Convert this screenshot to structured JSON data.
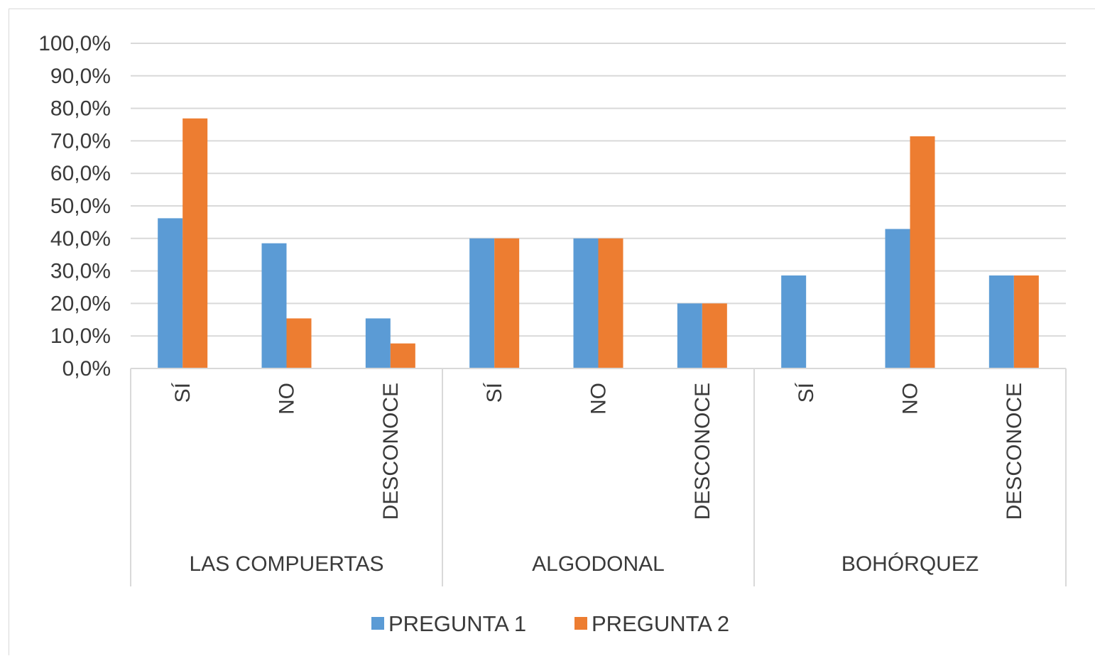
{
  "chart_data": {
    "type": "bar",
    "y_ticks": [
      "0,0%",
      "10,0%",
      "20,0%",
      "30,0%",
      "40,0%",
      "50,0%",
      "60,0%",
      "70,0%",
      "80,0%",
      "90,0%",
      "100,0%"
    ],
    "ylim": [
      0,
      100
    ],
    "grid": true,
    "legend_position": "bottom",
    "groups": [
      {
        "label": "LAS COMPUERTAS",
        "categories": [
          "SÍ",
          "NO",
          "DESCONOCE"
        ]
      },
      {
        "label": "ALGODONAL",
        "categories": [
          "SÍ",
          "NO",
          "DESCONOCE"
        ]
      },
      {
        "label": "BOHÓRQUEZ",
        "categories": [
          "SÍ",
          "NO",
          "DESCONOCE"
        ]
      }
    ],
    "series": [
      {
        "name": "PREGUNTA 1",
        "color": "#5b9bd5",
        "values": [
          46.2,
          38.5,
          15.4,
          40.0,
          40.0,
          20.0,
          28.6,
          42.9,
          28.6
        ]
      },
      {
        "name": "PREGUNTA 2",
        "color": "#ed7d31",
        "values": [
          76.9,
          15.4,
          7.7,
          40.0,
          40.0,
          20.0,
          0.0,
          71.4,
          28.6
        ]
      }
    ]
  }
}
